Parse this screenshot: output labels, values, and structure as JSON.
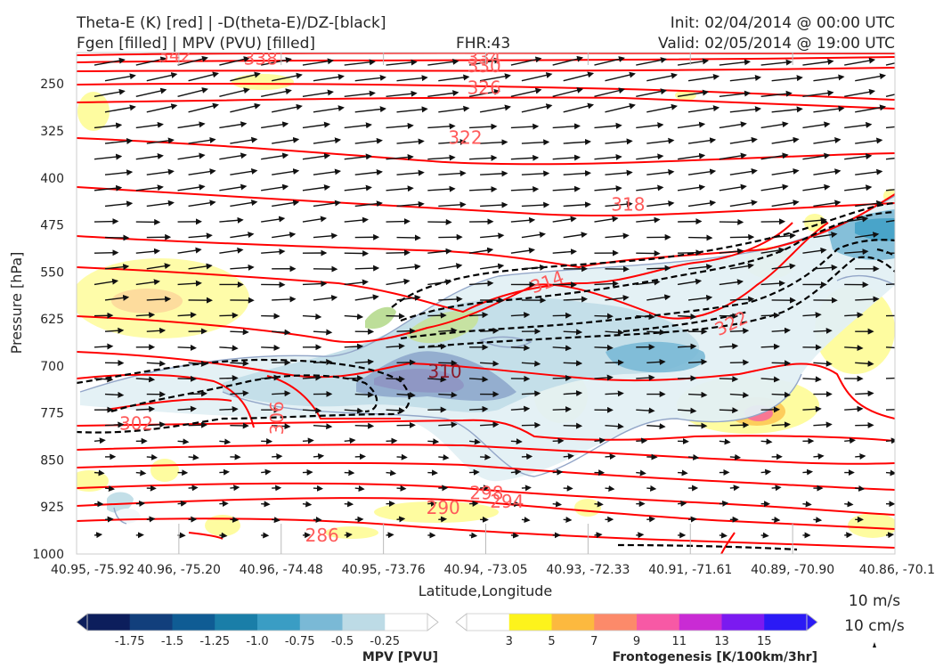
{
  "header": {
    "title_line1": "Theta-E (K) [red] | -D(theta-E)/DZ-[black]",
    "title_line2": "Fgen [filled] | MPV (PVU) [filled]",
    "fhr": "FHR:43",
    "init": "Init: 02/04/2014 @ 00:00 UTC",
    "valid": "Valid: 02/05/2014 @ 19:00 UTC"
  },
  "chart_data": {
    "type": "cross-section",
    "xlabel": "Latitude,Longitude",
    "ylabel": "Pressure [hPa]",
    "x_ticks": [
      "40.95, -75.92",
      "40.96, -75.20",
      "40.96, -74.48",
      "40.95, -73.76",
      "40.94, -73.05",
      "40.93, -72.33",
      "40.91, -71.61",
      "40.89, -70.90",
      "40.86, -70.1"
    ],
    "y_ticks": [
      "250",
      "325",
      "400",
      "475",
      "550",
      "625",
      "700",
      "775",
      "850",
      "925",
      "1000"
    ],
    "ylim": [
      1000,
      200
    ],
    "y_inverted": true,
    "theta_e_labels": [
      {
        "label": "342",
        "x_frac": 0.12,
        "p": 204
      },
      {
        "label": "338",
        "x_frac": 0.225,
        "p": 209
      },
      {
        "label": "334",
        "x_frac": 0.498,
        "p": 208
      },
      {
        "label": "330",
        "x_frac": 0.498,
        "p": 221
      },
      {
        "label": "326",
        "x_frac": 0.498,
        "p": 256
      },
      {
        "label": "322",
        "x_frac": 0.475,
        "p": 336
      },
      {
        "label": "318",
        "x_frac": 0.674,
        "p": 442
      },
      {
        "label": "314",
        "x_frac": 0.575,
        "p": 566
      },
      {
        "label": "322",
        "x_frac": 0.8,
        "p": 632
      },
      {
        "label": "310",
        "x_frac": 0.45,
        "p": 709
      },
      {
        "label": "306",
        "x_frac": 0.245,
        "p": 783
      },
      {
        "label": "302",
        "x_frac": 0.073,
        "p": 792
      },
      {
        "label": "298",
        "x_frac": 0.501,
        "p": 903
      },
      {
        "label": "294",
        "x_frac": 0.526,
        "p": 916
      },
      {
        "label": "290",
        "x_frac": 0.448,
        "p": 926
      },
      {
        "label": "286",
        "x_frac": 0.3,
        "p": 970
      }
    ],
    "colorbars": [
      {
        "label": "MPV [PVU]",
        "ticks": [
          "-1.75",
          "-1.5",
          "-1.25",
          "-1.0",
          "-0.75",
          "-0.5",
          "-0.25"
        ],
        "colors": [
          "#0c1e5c",
          "#123f7c",
          "#0f5c94",
          "#1a7ea8",
          "#3a9dc4",
          "#7ab9d6",
          "#bddbe6",
          "#ffffff"
        ]
      },
      {
        "label": "Frontogenesis [K/100km/3hr]",
        "ticks": [
          "3",
          "5",
          "7",
          "9",
          "11",
          "13",
          "15"
        ],
        "colors": [
          "#ffffff",
          "#fdf31c",
          "#fcb93f",
          "#fc8a6a",
          "#f759a5",
          "#c92bd4",
          "#7b1af0",
          "#2b1af5"
        ]
      }
    ],
    "vector_key": {
      "label": "10 m/s",
      "sub": "10 cm/s"
    }
  }
}
